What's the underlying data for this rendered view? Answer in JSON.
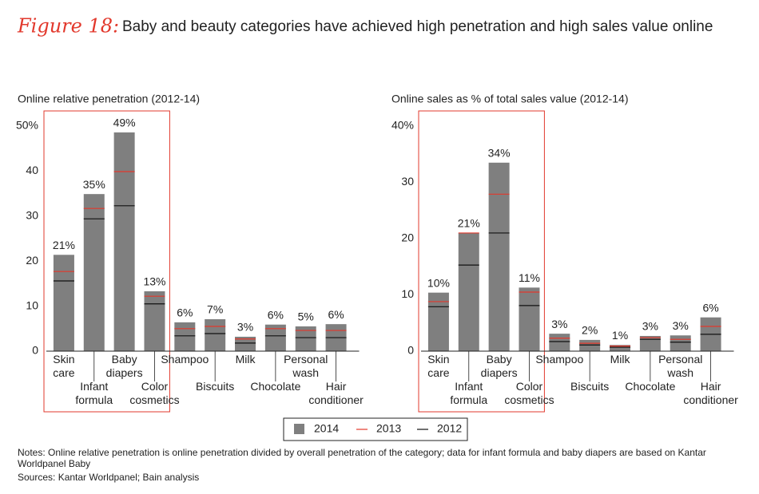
{
  "figure_label": "Figure 18:",
  "title": "Baby and beauty categories have achieved high penetration and high sales value online",
  "legend": [
    {
      "name": "2014",
      "color": "#7f7f7f",
      "marker": "bar"
    },
    {
      "name": "2013",
      "color": "#e2382c",
      "marker": "line"
    },
    {
      "name": "2012",
      "color": "#111111",
      "marker": "line"
    }
  ],
  "chart_data": [
    {
      "type": "bar",
      "title": "Online relative penetration (2012-14)",
      "categories": [
        "Skin care",
        "Infant formula",
        "Baby diapers",
        "Color cosmetics",
        "Shampoo",
        "Biscuits",
        "Milk",
        "Chocolate",
        "Personal wash",
        "Hair conditioner"
      ],
      "series": [
        {
          "values": [
            21.4,
            34.9,
            48.6,
            13.3,
            6.4,
            7.1,
            3.2,
            5.9,
            5.5,
            6.0
          ],
          "value_labels": [
            "21%",
            "35%",
            "49%",
            "13%",
            "6%",
            "7%",
            "3%",
            "6%",
            "5%",
            "6%"
          ]
        },
        {
          "values": [
            17.7,
            31.7,
            39.9,
            12.2,
            5.0,
            5.5,
            2.7,
            5.0,
            4.6,
            4.6
          ]
        },
        {
          "values": [
            15.6,
            29.4,
            32.3,
            10.5,
            3.4,
            3.9,
            1.8,
            3.4,
            3.0,
            3.0
          ]
        }
      ],
      "ylim": [
        0,
        50
      ],
      "yticks": [
        0,
        10,
        20,
        30,
        40,
        {
          "value": 50,
          "label": "50%"
        }
      ]
    },
    {
      "type": "bar",
      "title": "Online sales as % of total sales value (2012-14)",
      "categories": [
        "Skin care",
        "Infant formula",
        "Baby diapers",
        "Color cosmetics",
        "Shampoo",
        "Biscuits",
        "Milk",
        "Chocolate",
        "Personal wash",
        "Hair conditioner"
      ],
      "series": [
        {
          "values": [
            10.4,
            21.0,
            33.5,
            11.3,
            3.1,
            2.0,
            1.1,
            2.7,
            2.8,
            6.0
          ],
          "value_labels": [
            "10%",
            "21%",
            "34%",
            "11%",
            "3%",
            "2%",
            "1%",
            "3%",
            "3%",
            "6%"
          ]
        },
        {
          "values": [
            8.8,
            21.0,
            27.9,
            10.5,
            2.3,
            1.4,
            0.9,
            2.4,
            2.1,
            4.4
          ]
        },
        {
          "values": [
            7.9,
            15.3,
            21.0,
            8.1,
            1.7,
            1.1,
            0.7,
            2.1,
            1.6,
            3.0
          ]
        }
      ],
      "ylim": [
        0,
        40
      ],
      "yticks": [
        0,
        10,
        20,
        30,
        {
          "value": 40,
          "label": "40%"
        }
      ]
    }
  ],
  "notes": "Notes: Online relative penetration is online penetration divided by overall penetration of the category; data for infant formula and baby diapers are based on Kantar Worldpanel Baby",
  "sources": "Sources: Kantar Worldpanel; Bain analysis"
}
